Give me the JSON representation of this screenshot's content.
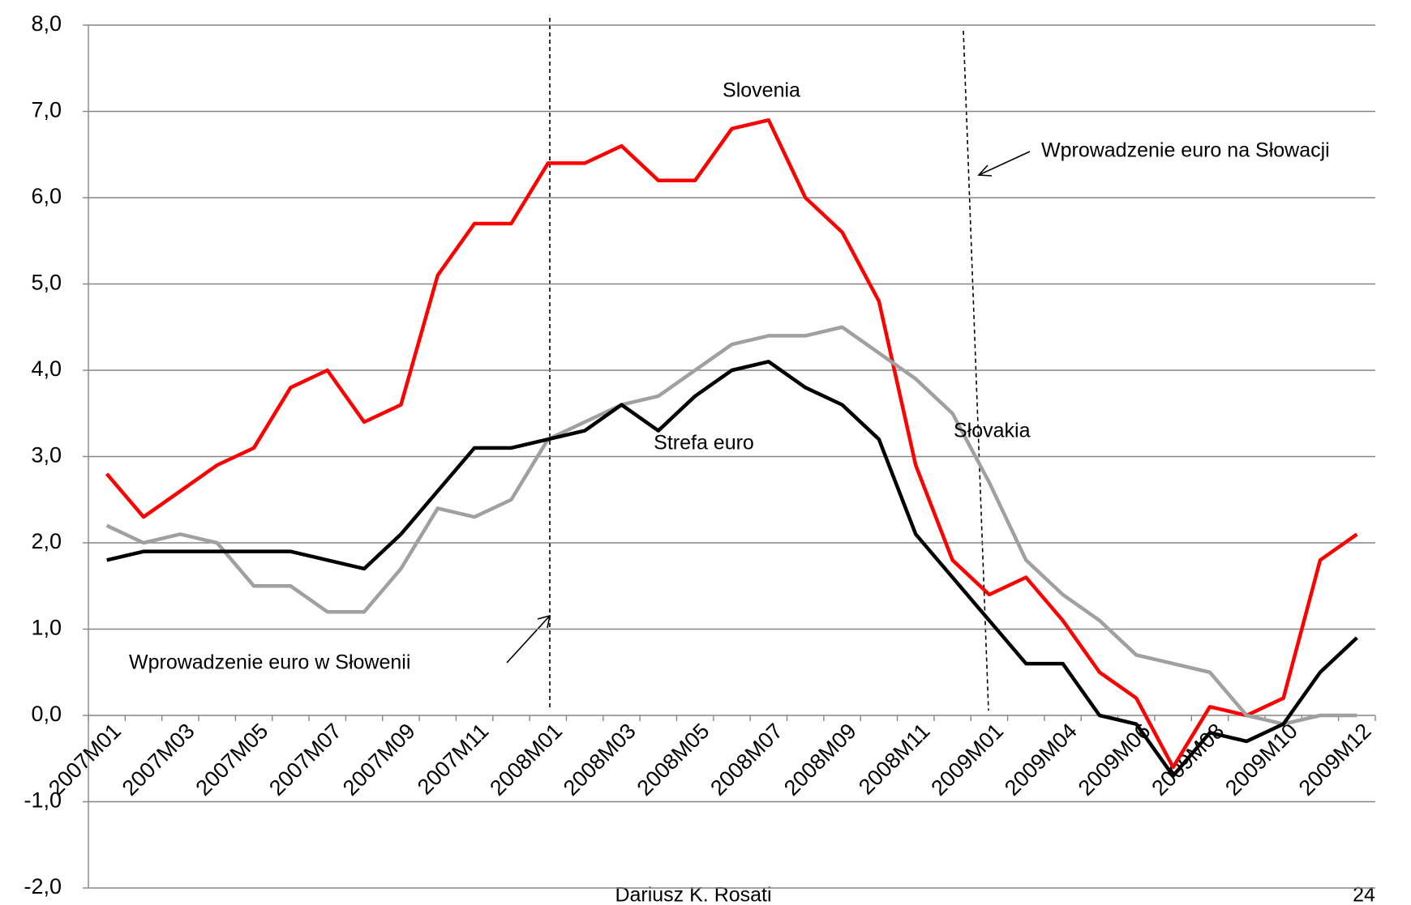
{
  "chart_data": {
    "type": "line",
    "categories": [
      "2007M01",
      null,
      "2007M03",
      null,
      "2007M05",
      null,
      "2007M07",
      null,
      "2007M09",
      null,
      "2007M11",
      null,
      "2008M01",
      null,
      "2008M03",
      null,
      "2008M05",
      null,
      "2008M07",
      null,
      "2008M09",
      null,
      "2008M11",
      null,
      "2009M01",
      null,
      "2009M04",
      null,
      "2009M06",
      null,
      "2009M08",
      null,
      "2009M10",
      null,
      "2009M12"
    ],
    "series": [
      {
        "name": "Slovenia",
        "color": "#ff0000",
        "values": [
          2.8,
          2.3,
          2.6,
          2.9,
          3.1,
          3.8,
          4.0,
          3.4,
          3.6,
          5.1,
          5.7,
          5.7,
          6.4,
          6.4,
          6.6,
          6.2,
          6.2,
          6.8,
          6.9,
          6.0,
          5.6,
          4.8,
          2.9,
          1.8,
          1.4,
          1.6,
          1.1,
          0.5,
          0.2,
          -0.6,
          0.1,
          0.0,
          0.2,
          1.8,
          2.1
        ]
      },
      {
        "name": "Słovakia",
        "color": "#a0a0a0",
        "values": [
          2.2,
          2.0,
          2.1,
          2.0,
          1.5,
          1.5,
          1.2,
          1.2,
          1.7,
          2.4,
          2.3,
          2.5,
          3.2,
          3.4,
          3.6,
          3.7,
          4.0,
          4.3,
          4.4,
          4.4,
          4.5,
          4.2,
          3.9,
          3.5,
          2.7,
          1.8,
          1.4,
          1.1,
          0.7,
          0.6,
          0.5,
          0.0,
          -0.1,
          0.0,
          0.0
        ]
      },
      {
        "name": "Strefa euro",
        "color": "#000000",
        "values": [
          1.8,
          1.9,
          1.9,
          1.9,
          1.9,
          1.9,
          1.8,
          1.7,
          2.1,
          2.6,
          3.1,
          3.1,
          3.2,
          3.3,
          3.6,
          3.3,
          3.7,
          4.0,
          4.1,
          3.8,
          3.6,
          3.2,
          2.1,
          1.6,
          1.1,
          0.6,
          0.6,
          0.0,
          -0.1,
          -0.7,
          -0.2,
          -0.3,
          -0.1,
          0.5,
          0.9
        ]
      }
    ],
    "ylim": [
      -2,
      8
    ],
    "yticks": [
      {
        "value": -2,
        "label": "-2,0"
      },
      {
        "value": -1,
        "label": "-1,0"
      },
      {
        "value": 0,
        "label": "0,0"
      },
      {
        "value": 1,
        "label": "1,0"
      },
      {
        "value": 2,
        "label": "2,0"
      },
      {
        "value": 3,
        "label": "3,0"
      },
      {
        "value": 4,
        "label": "4,0"
      },
      {
        "value": 5,
        "label": "5,0"
      },
      {
        "value": 6,
        "label": "6,0"
      },
      {
        "value": 7,
        "label": "7,0"
      },
      {
        "value": 8,
        "label": "8,0"
      }
    ],
    "grid": true,
    "annotations": [
      "Wprowadzenie euro na Słowacji",
      "Wprowadzenie euro w Słowenii"
    ],
    "footer": "Dariusz K. Rosati",
    "page": "24"
  }
}
